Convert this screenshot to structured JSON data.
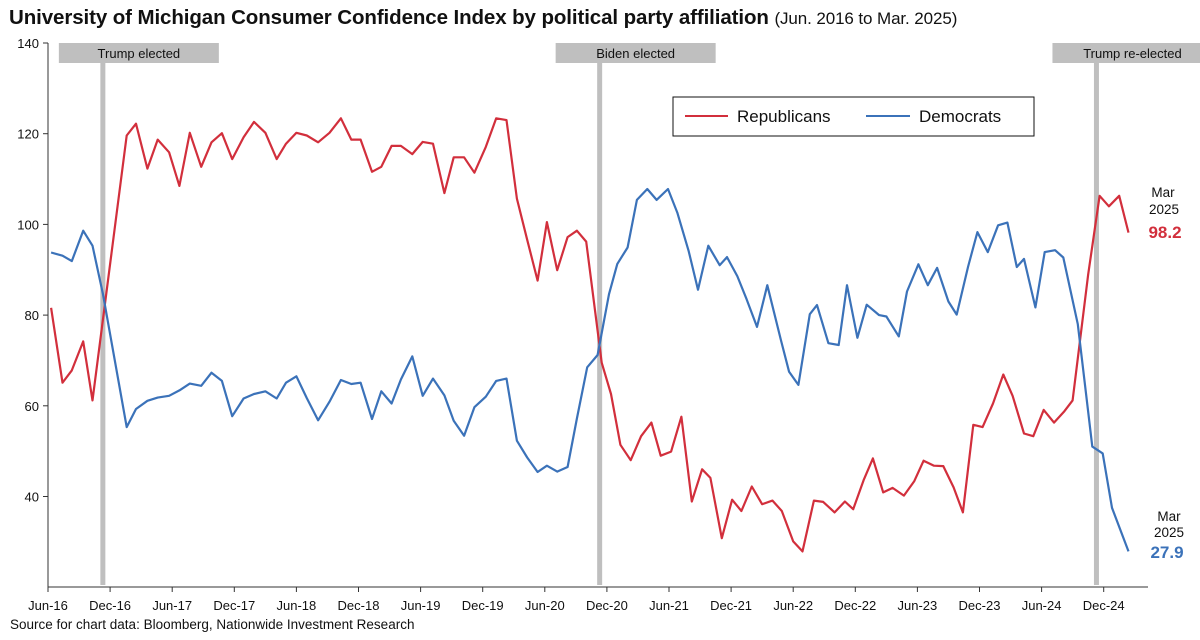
{
  "chart_data": {
    "type": "line",
    "title": "University of Michigan Consumer Confidence Index by political party affiliation",
    "subtitle": "(Jun. 2016 to Mar. 2025)",
    "xlabel": "",
    "ylabel": "",
    "ylim": [
      20,
      140
    ],
    "yticks": [
      40,
      60,
      80,
      100,
      120,
      140
    ],
    "x_start": "Jun-16",
    "x_unit": "months since Jun-2016",
    "xlim": [
      0,
      106
    ],
    "xticks": [
      {
        "m": 0,
        "label": "Jun-16"
      },
      {
        "m": 6,
        "label": "Dec-16"
      },
      {
        "m": 12,
        "label": "Jun-17"
      },
      {
        "m": 18,
        "label": "Dec-17"
      },
      {
        "m": 24,
        "label": "Jun-18"
      },
      {
        "m": 30,
        "label": "Dec-18"
      },
      {
        "m": 36,
        "label": "Jun-19"
      },
      {
        "m": 42,
        "label": "Dec-19"
      },
      {
        "m": 48,
        "label": "Jun-20"
      },
      {
        "m": 54,
        "label": "Dec-20"
      },
      {
        "m": 60,
        "label": "Jun-21"
      },
      {
        "m": 66,
        "label": "Dec-21"
      },
      {
        "m": 72,
        "label": "Jun-22"
      },
      {
        "m": 78,
        "label": "Dec-22"
      },
      {
        "m": 84,
        "label": "Jun-23"
      },
      {
        "m": 90,
        "label": "Dec-23"
      },
      {
        "m": 96,
        "label": "Jun-24"
      },
      {
        "m": 102,
        "label": "Dec-24"
      }
    ],
    "grid": false,
    "legend": {
      "position": "top-right",
      "entries": [
        "Republicans",
        "Democrats"
      ]
    },
    "events": [
      {
        "m": 5.3,
        "label": "Trump elected"
      },
      {
        "m": 53.3,
        "label": "Biden elected"
      },
      {
        "m": 101.3,
        "label": "Trump re-elected"
      }
    ],
    "series": [
      {
        "name": "Republicans",
        "color": "#d22f3c",
        "points": [
          [
            0.3,
            81.6
          ],
          [
            1.4,
            65.1
          ],
          [
            2.3,
            67.8
          ],
          [
            3.4,
            74.2
          ],
          [
            4.3,
            61.2
          ],
          [
            7.6,
            119.6
          ],
          [
            8.5,
            122.2
          ],
          [
            9.6,
            112.3
          ],
          [
            10.6,
            118.7
          ],
          [
            11.7,
            115.9
          ],
          [
            12.7,
            108.5
          ],
          [
            13.7,
            120.2
          ],
          [
            14.8,
            112.7
          ],
          [
            15.8,
            118.1
          ],
          [
            16.8,
            120.1
          ],
          [
            17.8,
            114.4
          ],
          [
            18.9,
            119.2
          ],
          [
            19.9,
            122.6
          ],
          [
            21.0,
            120.2
          ],
          [
            22.1,
            114.4
          ],
          [
            23.0,
            117.8
          ],
          [
            24.0,
            120.2
          ],
          [
            25.0,
            119.6
          ],
          [
            26.1,
            118.1
          ],
          [
            27.2,
            120.2
          ],
          [
            28.3,
            123.4
          ],
          [
            29.3,
            118.7
          ],
          [
            30.2,
            118.7
          ],
          [
            31.3,
            111.6
          ],
          [
            32.2,
            112.7
          ],
          [
            33.2,
            117.3
          ],
          [
            34.1,
            117.3
          ],
          [
            35.2,
            115.5
          ],
          [
            36.2,
            118.2
          ],
          [
            37.2,
            117.8
          ],
          [
            38.3,
            106.9
          ],
          [
            39.2,
            114.8
          ],
          [
            40.2,
            114.8
          ],
          [
            41.2,
            111.4
          ],
          [
            42.3,
            117.1
          ],
          [
            43.3,
            123.4
          ],
          [
            44.3,
            123.0
          ],
          [
            45.3,
            105.7
          ],
          [
            46.3,
            96.6
          ],
          [
            47.3,
            87.6
          ],
          [
            48.2,
            100.5
          ],
          [
            49.2,
            89.9
          ],
          [
            50.2,
            97.2
          ],
          [
            51.1,
            98.6
          ],
          [
            52.0,
            96.2
          ],
          [
            53.5,
            69.5
          ],
          [
            54.4,
            62.6
          ],
          [
            55.3,
            51.4
          ],
          [
            56.3,
            48.0
          ],
          [
            57.3,
            53.3
          ],
          [
            58.3,
            56.3
          ],
          [
            59.2,
            49.0
          ],
          [
            60.2,
            49.9
          ],
          [
            61.2,
            57.6
          ],
          [
            62.2,
            38.9
          ],
          [
            63.2,
            46.0
          ],
          [
            64.0,
            44.1
          ],
          [
            65.1,
            30.8
          ],
          [
            66.1,
            39.3
          ],
          [
            67.0,
            36.8
          ],
          [
            68.0,
            42.2
          ],
          [
            69.0,
            38.3
          ],
          [
            70.0,
            39.1
          ],
          [
            70.9,
            36.8
          ],
          [
            72.0,
            30.1
          ],
          [
            72.9,
            27.9
          ],
          [
            74.0,
            39.1
          ],
          [
            74.9,
            38.8
          ],
          [
            76.0,
            36.5
          ],
          [
            77.0,
            38.9
          ],
          [
            77.8,
            37.2
          ],
          [
            78.8,
            43.6
          ],
          [
            79.7,
            48.4
          ],
          [
            80.7,
            40.9
          ],
          [
            81.6,
            41.9
          ],
          [
            82.7,
            40.2
          ],
          [
            83.7,
            43.4
          ],
          [
            84.6,
            47.9
          ],
          [
            85.6,
            46.8
          ],
          [
            86.5,
            46.7
          ],
          [
            87.5,
            42.0
          ],
          [
            88.4,
            36.5
          ],
          [
            89.4,
            55.8
          ],
          [
            90.3,
            55.3
          ],
          [
            91.3,
            60.5
          ],
          [
            92.3,
            66.9
          ],
          [
            93.2,
            62.2
          ],
          [
            94.3,
            53.9
          ],
          [
            95.2,
            53.3
          ],
          [
            96.2,
            59.1
          ],
          [
            97.2,
            56.3
          ],
          [
            98.2,
            58.8
          ],
          [
            99.0,
            61.2
          ],
          [
            100.5,
            89.0
          ],
          [
            101.6,
            106.3
          ],
          [
            102.5,
            104.0
          ],
          [
            103.5,
            106.3
          ],
          [
            104.4,
            98.2
          ]
        ]
      },
      {
        "name": "Democrats",
        "color": "#3b72b9",
        "points": [
          [
            0.3,
            93.8
          ],
          [
            1.4,
            93.1
          ],
          [
            2.3,
            91.9
          ],
          [
            3.4,
            98.6
          ],
          [
            4.3,
            95.3
          ],
          [
            5.3,
            84.7
          ],
          [
            7.6,
            55.3
          ],
          [
            8.5,
            59.3
          ],
          [
            9.6,
            61.1
          ],
          [
            10.6,
            61.8
          ],
          [
            11.7,
            62.2
          ],
          [
            12.7,
            63.4
          ],
          [
            13.7,
            64.9
          ],
          [
            14.8,
            64.4
          ],
          [
            15.8,
            67.3
          ],
          [
            16.8,
            65.5
          ],
          [
            17.8,
            57.7
          ],
          [
            18.9,
            61.6
          ],
          [
            19.9,
            62.6
          ],
          [
            21.0,
            63.2
          ],
          [
            22.1,
            61.6
          ],
          [
            23.0,
            65.1
          ],
          [
            24.0,
            66.5
          ],
          [
            25.0,
            61.7
          ],
          [
            26.1,
            56.8
          ],
          [
            27.2,
            60.9
          ],
          [
            28.3,
            65.7
          ],
          [
            29.3,
            64.8
          ],
          [
            30.2,
            65.1
          ],
          [
            31.3,
            57.1
          ],
          [
            32.2,
            63.2
          ],
          [
            33.2,
            60.5
          ],
          [
            34.1,
            65.8
          ],
          [
            35.2,
            70.9
          ],
          [
            36.2,
            62.2
          ],
          [
            37.2,
            66.0
          ],
          [
            38.3,
            62.3
          ],
          [
            39.2,
            56.7
          ],
          [
            40.2,
            53.4
          ],
          [
            41.2,
            59.7
          ],
          [
            42.3,
            62.0
          ],
          [
            43.3,
            65.5
          ],
          [
            44.3,
            66.0
          ],
          [
            45.3,
            52.3
          ],
          [
            46.3,
            48.6
          ],
          [
            47.3,
            45.4
          ],
          [
            48.2,
            46.8
          ],
          [
            49.2,
            45.5
          ],
          [
            50.2,
            46.5
          ],
          [
            51.1,
            57.2
          ],
          [
            52.1,
            68.5
          ],
          [
            53.1,
            71.2
          ],
          [
            54.2,
            84.6
          ],
          [
            55.0,
            91.3
          ],
          [
            56.0,
            94.9
          ],
          [
            56.9,
            105.4
          ],
          [
            57.9,
            107.8
          ],
          [
            58.8,
            105.4
          ],
          [
            59.9,
            107.8
          ],
          [
            60.8,
            102.6
          ],
          [
            61.9,
            94.1
          ],
          [
            62.8,
            85.6
          ],
          [
            63.8,
            95.3
          ],
          [
            64.9,
            91.0
          ],
          [
            65.6,
            92.8
          ],
          [
            66.6,
            88.6
          ],
          [
            67.5,
            83.5
          ],
          [
            68.5,
            77.4
          ],
          [
            69.5,
            86.6
          ],
          [
            70.8,
            74.6
          ],
          [
            71.6,
            67.5
          ],
          [
            72.5,
            64.6
          ],
          [
            73.6,
            80.2
          ],
          [
            74.3,
            82.2
          ],
          [
            75.4,
            73.8
          ],
          [
            76.4,
            73.4
          ],
          [
            77.2,
            86.6
          ],
          [
            78.2,
            75.0
          ],
          [
            79.1,
            82.3
          ],
          [
            80.3,
            80.0
          ],
          [
            81.0,
            79.7
          ],
          [
            82.2,
            75.3
          ],
          [
            83.0,
            85.2
          ],
          [
            84.1,
            91.2
          ],
          [
            85.0,
            86.6
          ],
          [
            85.9,
            90.4
          ],
          [
            87.0,
            83.0
          ],
          [
            87.8,
            80.1
          ],
          [
            88.9,
            90.7
          ],
          [
            89.8,
            98.3
          ],
          [
            90.8,
            93.9
          ],
          [
            91.8,
            99.8
          ],
          [
            92.7,
            100.4
          ],
          [
            93.6,
            90.6
          ],
          [
            94.3,
            92.4
          ],
          [
            95.4,
            81.7
          ],
          [
            96.3,
            93.9
          ],
          [
            97.3,
            94.3
          ],
          [
            98.1,
            92.7
          ],
          [
            99.5,
            78.0
          ],
          [
            100.9,
            51.0
          ],
          [
            101.9,
            49.5
          ],
          [
            102.8,
            37.5
          ],
          [
            104.4,
            27.9
          ]
        ]
      }
    ],
    "annotations": [
      {
        "series": "Republicans",
        "label_line1": "Mar",
        "label_line2": "2025",
        "value": "98.2"
      },
      {
        "series": "Democrats",
        "label_line1": "Mar",
        "label_line2": "2025",
        "value": "27.9"
      }
    ],
    "source": "Source for chart data: Bloomberg, Nationwide Investment Research"
  },
  "event_bar_color": "#bfbfbf"
}
